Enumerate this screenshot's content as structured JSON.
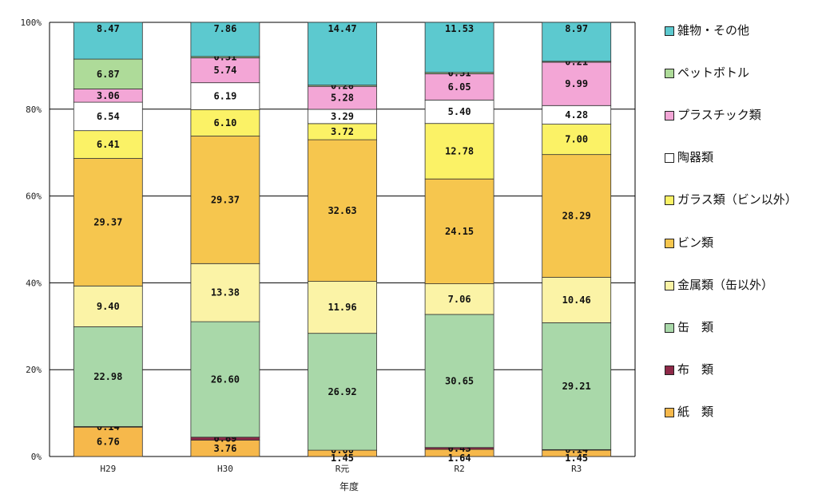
{
  "chart_data": {
    "type": "bar",
    "stacked": true,
    "percent": true,
    "categories": [
      "H29",
      "H30",
      "R元",
      "R2",
      "R3"
    ],
    "xlabel": "年度",
    "ylabel": "",
    "ylim": [
      0,
      100
    ],
    "yticks": [
      "0%",
      "20%",
      "40%",
      "60%",
      "80%",
      "100%"
    ],
    "legend_position": "right",
    "series": [
      {
        "name": "紙　類",
        "color": "#f6b84b",
        "values": [
          6.76,
          3.76,
          1.45,
          1.64,
          1.45
        ],
        "labels": [
          "6.76",
          "3.76",
          "1.45",
          "1.64",
          "1.45"
        ]
      },
      {
        "name": "布　類",
        "color": "#8e2948",
        "values": [
          0.14,
          0.69,
          0.0,
          0.43,
          0.14
        ],
        "labels": [
          "0.14",
          "0.69",
          "0.00",
          "0.43",
          "0.14"
        ]
      },
      {
        "name": "缶　類",
        "color": "#a9d8a9",
        "values": [
          22.98,
          26.6,
          26.92,
          30.65,
          29.21
        ],
        "labels": [
          "22.98",
          "26.60",
          "26.92",
          "30.65",
          "29.21"
        ]
      },
      {
        "name": "金属類（缶以外）",
        "color": "#fbf3a6",
        "values": [
          9.4,
          13.38,
          11.96,
          7.06,
          10.46
        ],
        "labels": [
          "9.40",
          "13.38",
          "11.96",
          "7.06",
          "10.46"
        ]
      },
      {
        "name": "ビン類",
        "color": "#f6c64e",
        "values": [
          29.37,
          29.37,
          32.63,
          24.15,
          28.29
        ],
        "labels": [
          "29.37",
          "29.37",
          "32.63",
          "24.15",
          "28.29"
        ]
      },
      {
        "name": "ガラス類（ビン以外）",
        "color": "#fbf266",
        "values": [
          6.41,
          6.1,
          3.72,
          12.78,
          7.0
        ],
        "labels": [
          "6.41",
          "6.10",
          "3.72",
          "12.78",
          "7.00"
        ]
      },
      {
        "name": "陶器類",
        "color": "#ffffff",
        "values": [
          6.54,
          6.19,
          3.29,
          5.4,
          4.28
        ],
        "labels": [
          "6.54",
          "6.19",
          "3.29",
          "5.40",
          "4.28"
        ]
      },
      {
        "name": "プラスチック類",
        "color": "#f3a6d6",
        "values": [
          3.06,
          5.74,
          5.28,
          6.05,
          9.99
        ],
        "labels": [
          "3.06",
          "5.74",
          "5.28",
          "6.05",
          "9.99"
        ]
      },
      {
        "name": "ペットボトル",
        "color": "#aedb99",
        "values": [
          6.87,
          0.31,
          0.28,
          0.31,
          0.21
        ],
        "labels": [
          "6.87",
          "0.31",
          "0.28",
          "0.31",
          "0.21"
        ]
      },
      {
        "name": "雑物・その他",
        "color": "#5cc9cf",
        "values": [
          8.47,
          7.86,
          14.47,
          11.53,
          8.97
        ],
        "labels": [
          "8.47",
          "7.86",
          "14.47",
          "11.53",
          "8.97"
        ]
      }
    ]
  },
  "legend": [
    {
      "label": "雑物・その他",
      "color": "#5cc9cf"
    },
    {
      "label": "ペットボトル",
      "color": "#aedb99"
    },
    {
      "label": "プラスチック類",
      "color": "#f3a6d6"
    },
    {
      "label": "陶器類",
      "color": "#ffffff"
    },
    {
      "label": "ガラス類（ビン以外）",
      "color": "#fbf266"
    },
    {
      "label": "ビン類",
      "color": "#f6c64e"
    },
    {
      "label": "金属類（缶以外）",
      "color": "#fbf3a6"
    },
    {
      "label": "缶　類",
      "color": "#a9d8a9"
    },
    {
      "label": "布　類",
      "color": "#8e2948"
    },
    {
      "label": "紙　類",
      "color": "#f6b84b"
    }
  ]
}
